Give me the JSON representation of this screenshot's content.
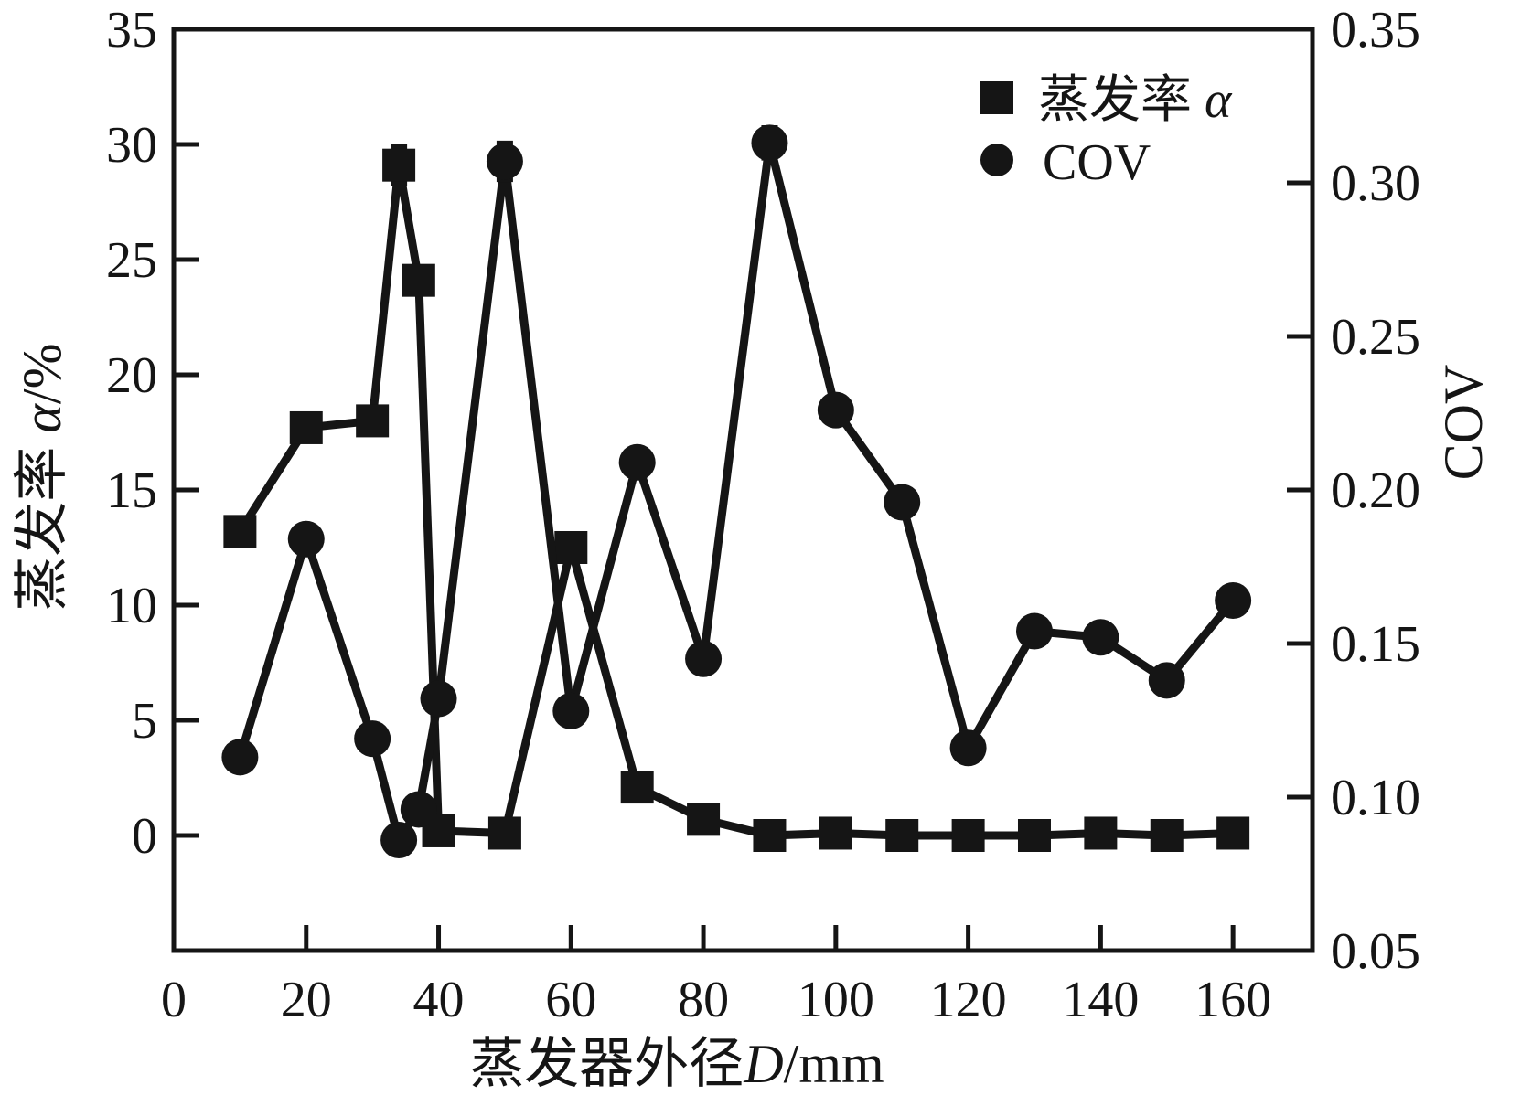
{
  "figure": {
    "background": "#ffffff",
    "ink": "#151515"
  },
  "legend": {
    "items": [
      {
        "marker": "square-icon",
        "label_parts": [
          {
            "text": "蒸发率 ",
            "italic": false
          },
          {
            "text": "α",
            "italic": true
          }
        ]
      },
      {
        "marker": "circle-icon",
        "label_parts": [
          {
            "text": "COV",
            "italic": false
          }
        ]
      }
    ]
  },
  "axes": {
    "x": {
      "label_parts": [
        {
          "text": "蒸发器外径",
          "italic": false
        },
        {
          "text": "D",
          "italic": true
        },
        {
          "text": "/mm",
          "italic": false
        }
      ],
      "tick_labels": [
        "0",
        "20",
        "40",
        "60",
        "80",
        "100",
        "120",
        "140",
        "160"
      ],
      "tick_values": [
        0,
        20,
        40,
        60,
        80,
        100,
        120,
        140,
        160
      ],
      "lim": [
        0,
        172
      ]
    },
    "y_left": {
      "label_parts": [
        {
          "text": "蒸发率 ",
          "italic": false
        },
        {
          "text": "α",
          "italic": true
        },
        {
          "text": "/%",
          "italic": false
        }
      ],
      "tick_labels": [
        "0",
        "5",
        "10",
        "15",
        "20",
        "25",
        "30",
        "35"
      ],
      "tick_values": [
        0,
        5,
        10,
        15,
        20,
        25,
        30,
        35
      ],
      "lim": [
        -5,
        35
      ]
    },
    "y_right": {
      "label_parts": [
        {
          "text": "COV",
          "italic": false
        }
      ],
      "tick_labels": [
        "0.05",
        "0.10",
        "0.15",
        "0.20",
        "0.25",
        "0.30",
        "0.35"
      ],
      "tick_values": [
        0.05,
        0.1,
        0.15,
        0.2,
        0.25,
        0.3,
        0.35
      ],
      "lim": [
        0.05,
        0.35
      ]
    }
  },
  "chart_data": {
    "type": "line",
    "title": "",
    "xlabel": "蒸发器外径 D/mm",
    "ylabel_left": "蒸发率 α/%",
    "ylabel_right": "COV",
    "grid": false,
    "legend_position": "upper right inside",
    "x": [
      10,
      20,
      30,
      34,
      37,
      40,
      50,
      60,
      70,
      80,
      90,
      100,
      110,
      120,
      130,
      140,
      150,
      160
    ],
    "series": [
      {
        "name": "蒸发率 α",
        "axis": "left",
        "marker": "square",
        "values": [
          13.2,
          17.7,
          18.0,
          29.1,
          24.1,
          0.2,
          0.1,
          12.5,
          2.1,
          0.7,
          0.0,
          0.1,
          0.0,
          0.0,
          0.0,
          0.1,
          0.0,
          0.1
        ]
      },
      {
        "name": "COV",
        "axis": "right",
        "marker": "circle",
        "values": [
          0.113,
          0.184,
          0.119,
          0.086,
          0.096,
          0.132,
          0.307,
          0.128,
          0.209,
          0.145,
          0.313,
          0.226,
          0.196,
          0.116,
          0.154,
          0.152,
          0.138,
          0.164
        ]
      }
    ],
    "error_bars": [
      {
        "series_index": 0,
        "x": 34,
        "plus": 0.8,
        "minus": 0.8
      },
      {
        "series_index": 1,
        "x": 50,
        "plus": 0.006,
        "minus": 0.006
      },
      {
        "series_index": 1,
        "x": 90,
        "plus": 0.005,
        "minus": 0.005
      }
    ]
  }
}
